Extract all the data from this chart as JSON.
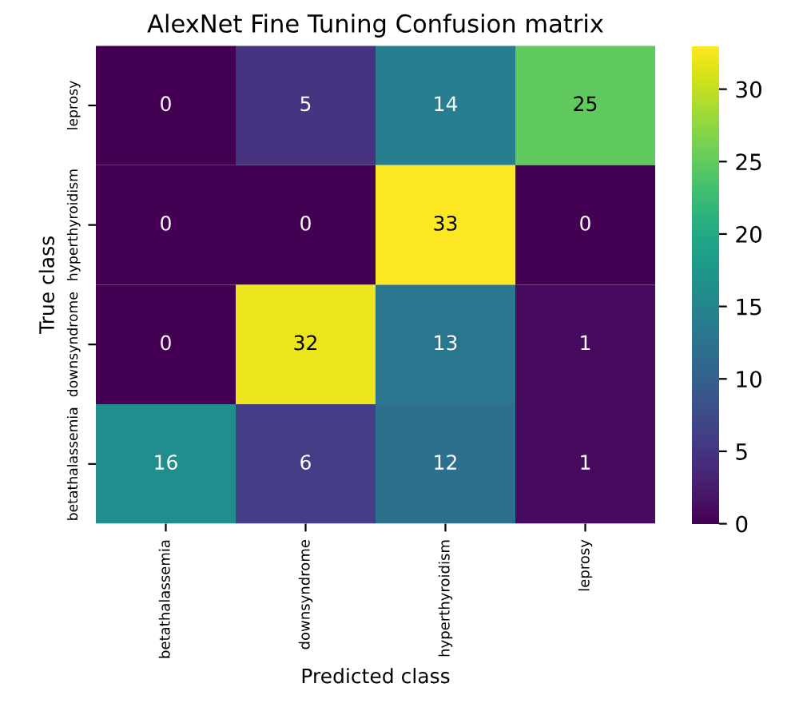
{
  "chart_data": {
    "type": "heatmap",
    "title": "AlexNet Fine Tuning Confusion matrix",
    "xlabel": "Predicted class",
    "ylabel": "True class",
    "categories": [
      "betathalassemia",
      "downsyndrome",
      "hyperthyroidism",
      "leprosy"
    ],
    "y_categories": [
      "leprosy",
      "hyperthyroidism",
      "downsyndrome",
      "betathalassemia"
    ],
    "cells": [
      [
        0,
        5,
        14,
        25
      ],
      [
        0,
        0,
        33,
        0
      ],
      [
        0,
        32,
        13,
        1
      ],
      [
        16,
        6,
        12,
        1
      ]
    ],
    "clim": [
      0,
      33
    ],
    "cticks": [
      0,
      5,
      10,
      15,
      20,
      25,
      30
    ],
    "data_labels": true
  }
}
